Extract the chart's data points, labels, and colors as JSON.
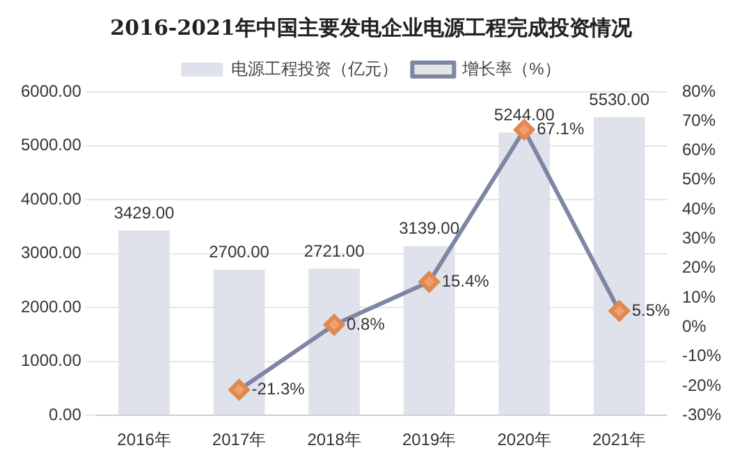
{
  "chart_data": {
    "type": "bar",
    "title": "2016-2021年中国主要发电企业电源工程完成投资情况",
    "categories": [
      "2016年",
      "2017年",
      "2018年",
      "2019年",
      "2020年",
      "2021年"
    ],
    "series": [
      {
        "name": "电源工程投资（亿元）",
        "color": "#dfe2ea",
        "values": [
          3429,
          2700,
          2721,
          3139,
          5244,
          5530
        ],
        "value_labels": [
          "3429.00",
          "2700.00",
          "2721.00",
          "3139.00",
          "5244.00",
          "5530.00"
        ]
      },
      {
        "name": "增长率（%）",
        "type": "line",
        "axis": "y2",
        "color": "#7d86a3",
        "marker": "diamond",
        "values": [
          null,
          -21.3,
          0.8,
          15.4,
          67.1,
          5.5
        ],
        "value_labels": [
          null,
          "-21.3%",
          "0.8%",
          "15.4%",
          "67.1%",
          "5.5%"
        ]
      }
    ],
    "ylim": [
      0,
      6000
    ],
    "yticks": [
      {
        "value": 0,
        "label": "0.00"
      },
      {
        "value": 1000,
        "label": "1000.00"
      },
      {
        "value": 2000,
        "label": "2000.00"
      },
      {
        "value": 3000,
        "label": "3000.00"
      },
      {
        "value": 4000,
        "label": "4000.00"
      },
      {
        "value": 5000,
        "label": "5000.00"
      },
      {
        "value": 6000,
        "label": "6000.00"
      }
    ],
    "y2lim": [
      -30,
      80
    ],
    "y2ticks": [
      {
        "value": -30,
        "label": "-30%"
      },
      {
        "value": -20,
        "label": "-20%"
      },
      {
        "value": -10,
        "label": "-10%"
      },
      {
        "value": 0,
        "label": "0%"
      },
      {
        "value": 10,
        "label": "10%"
      },
      {
        "value": 20,
        "label": "20%"
      },
      {
        "value": 30,
        "label": "30%"
      },
      {
        "value": 40,
        "label": "40%"
      },
      {
        "value": 50,
        "label": "50%"
      },
      {
        "value": 60,
        "label": "60%"
      },
      {
        "value": 70,
        "label": "70%"
      },
      {
        "value": 80,
        "label": "80%"
      }
    ],
    "grid": "y",
    "legend": "top"
  }
}
